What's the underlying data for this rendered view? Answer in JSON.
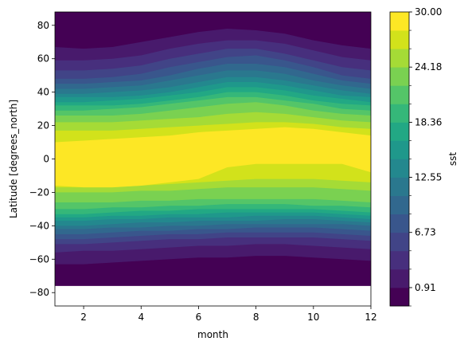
{
  "chart_data": {
    "type": "heatmap",
    "subtype": "filled-contour",
    "title": "",
    "xlabel": "month",
    "ylabel": "Latitude [degrees_north]",
    "xlim": [
      1,
      12
    ],
    "ylim": [
      -88,
      88
    ],
    "xticks": [
      2,
      4,
      6,
      8,
      10,
      12
    ],
    "yticks": [
      -80,
      -60,
      -40,
      -20,
      0,
      20,
      40,
      60,
      80
    ],
    "data_lat_range": [
      -76,
      88
    ],
    "colorbar": {
      "label": "sst",
      "range": [
        -1.03,
        30.0
      ],
      "tick_labels": [
        "30.00",
        "24.18",
        "18.36",
        "12.55",
        "6.73",
        "0.91"
      ],
      "tick_values": [
        30.0,
        24.18,
        18.36,
        12.55,
        6.73,
        0.91
      ],
      "levels": [
        -1.03,
        0.91,
        2.85,
        4.79,
        6.73,
        8.67,
        10.61,
        12.55,
        14.49,
        16.43,
        18.36,
        20.3,
        22.24,
        24.18,
        26.12,
        28.06,
        30.0
      ],
      "colors": [
        "#440154",
        "#481a6c",
        "#472f7d",
        "#414487",
        "#39568c",
        "#31688e",
        "#2a788e",
        "#23888e",
        "#1f988b",
        "#22a884",
        "#35b779",
        "#54c568",
        "#7ad151",
        "#a5db36",
        "#d2e21b",
        "#fde725"
      ],
      "colormap": "viridis"
    },
    "bands": [
      {
        "value_bin": 0,
        "north_edge_lat": [
          88,
          88,
          88,
          88,
          88,
          88,
          88,
          88,
          88,
          88,
          88,
          88
        ],
        "south_edge_lat": [
          -76,
          -76,
          -76,
          -76,
          -76,
          -76,
          -76,
          -76,
          -76,
          -76,
          -76,
          -76
        ]
      },
      {
        "value_bin": 1,
        "north_edge_lat": [
          67,
          66,
          67,
          70,
          73,
          76,
          78,
          77,
          75,
          71,
          68,
          66
        ],
        "south_edge_lat": [
          -63,
          -63,
          -62,
          -61,
          -60,
          -59,
          -59,
          -58,
          -58,
          -59,
          -60,
          -61
        ]
      },
      {
        "value_bin": 2,
        "north_edge_lat": [
          59,
          59,
          60,
          62,
          66,
          69,
          71,
          71,
          69,
          65,
          61,
          59
        ],
        "south_edge_lat": [
          -56,
          -55,
          -55,
          -54,
          -53,
          -52,
          -52,
          -51,
          -51,
          -52,
          -53,
          -54
        ]
      },
      {
        "value_bin": 3,
        "north_edge_lat": [
          53,
          53,
          54,
          56,
          60,
          63,
          66,
          66,
          63,
          59,
          55,
          53
        ],
        "south_edge_lat": [
          -51,
          -51,
          -50,
          -49,
          -48,
          -48,
          -47,
          -47,
          -47,
          -47,
          -48,
          -49
        ]
      },
      {
        "value_bin": 4,
        "north_edge_lat": [
          48,
          48,
          49,
          51,
          55,
          58,
          61,
          62,
          59,
          55,
          50,
          48
        ],
        "south_edge_lat": [
          -48,
          -48,
          -47,
          -46,
          -45,
          -45,
          -44,
          -44,
          -44,
          -44,
          -45,
          -46
        ]
      },
      {
        "value_bin": 5,
        "north_edge_lat": [
          45,
          45,
          46,
          47,
          50,
          54,
          57,
          57,
          55,
          51,
          47,
          45
        ],
        "south_edge_lat": [
          -45,
          -45,
          -44,
          -43,
          -43,
          -42,
          -42,
          -41,
          -41,
          -41,
          -42,
          -43
        ]
      },
      {
        "value_bin": 6,
        "north_edge_lat": [
          42,
          42,
          43,
          44,
          47,
          50,
          53,
          53,
          51,
          47,
          44,
          42
        ],
        "south_edge_lat": [
          -42,
          -42,
          -41,
          -41,
          -40,
          -40,
          -39,
          -39,
          -39,
          -39,
          -39,
          -40
        ]
      },
      {
        "value_bin": 7,
        "north_edge_lat": [
          39,
          39,
          40,
          41,
          43,
          46,
          49,
          49,
          47,
          44,
          41,
          39
        ],
        "south_edge_lat": [
          -40,
          -40,
          -39,
          -38,
          -38,
          -37,
          -37,
          -37,
          -36,
          -36,
          -37,
          -38
        ]
      },
      {
        "value_bin": 8,
        "north_edge_lat": [
          37,
          37,
          37,
          38,
          40,
          43,
          46,
          46,
          44,
          41,
          38,
          37
        ],
        "south_edge_lat": [
          -37,
          -37,
          -36,
          -36,
          -35,
          -35,
          -35,
          -34,
          -34,
          -34,
          -35,
          -36
        ]
      },
      {
        "value_bin": 9,
        "north_edge_lat": [
          34,
          34,
          35,
          36,
          38,
          40,
          43,
          43,
          41,
          38,
          36,
          34
        ],
        "south_edge_lat": [
          -35,
          -35,
          -34,
          -34,
          -33,
          -33,
          -32,
          -32,
          -32,
          -32,
          -33,
          -34
        ]
      },
      {
        "value_bin": 10,
        "north_edge_lat": [
          32,
          32,
          32,
          33,
          35,
          37,
          40,
          40,
          38,
          35,
          33,
          32
        ],
        "south_edge_lat": [
          -33,
          -33,
          -32,
          -31,
          -31,
          -30,
          -30,
          -30,
          -30,
          -30,
          -31,
          -32
        ]
      },
      {
        "value_bin": 11,
        "north_edge_lat": [
          29,
          29,
          30,
          31,
          33,
          35,
          37,
          37,
          35,
          33,
          30,
          29
        ],
        "south_edge_lat": [
          -30,
          -30,
          -29,
          -29,
          -28,
          -28,
          -27,
          -27,
          -27,
          -28,
          -28,
          -29
        ]
      },
      {
        "value_bin": 12,
        "north_edge_lat": [
          26,
          26,
          26,
          27,
          29,
          31,
          33,
          34,
          32,
          29,
          27,
          26
        ],
        "south_edge_lat": [
          -26,
          -26,
          -26,
          -25,
          -25,
          -24,
          -24,
          -24,
          -24,
          -24,
          -25,
          -26
        ]
      },
      {
        "value_bin": 13,
        "north_edge_lat": [
          22,
          22,
          22,
          23,
          24,
          25,
          27,
          28,
          27,
          25,
          23,
          22
        ],
        "south_edge_lat": [
          -20,
          -20,
          -20,
          -19,
          -19,
          -18,
          -17,
          -17,
          -17,
          -17,
          -18,
          -19
        ]
      },
      {
        "value_bin": 14,
        "north_edge_lat": [
          17,
          17,
          17,
          18,
          19,
          20,
          21,
          22,
          22,
          21,
          19,
          18
        ],
        "south_edge_lat": [
          -17,
          -17,
          -17,
          -16,
          -15,
          -14,
          -13,
          -12,
          -12,
          -12,
          -13,
          -14
        ]
      },
      {
        "value_bin": 15,
        "north_edge_lat": [
          10,
          11,
          12,
          13,
          14,
          16,
          17,
          18,
          19,
          18,
          16,
          14
        ],
        "south_edge_lat": [
          -16,
          -17,
          -17,
          -16,
          -14,
          -12,
          -5,
          -3,
          -3,
          -3,
          -3,
          -8
        ]
      }
    ]
  },
  "labels": {
    "x_ticks": [
      "2",
      "4",
      "6",
      "8",
      "10",
      "12"
    ],
    "y_ticks": [
      "−80",
      "−60",
      "−40",
      "−20",
      "0",
      "20",
      "40",
      "60",
      "80"
    ]
  }
}
